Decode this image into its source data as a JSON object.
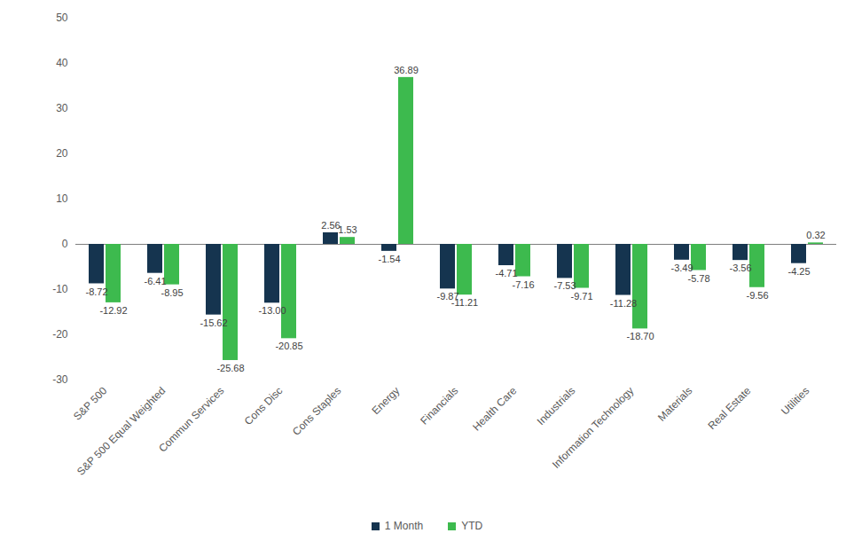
{
  "chart_data": {
    "type": "bar",
    "categories": [
      "S&P 500",
      "S&P 500 Equal Weighted",
      "Commun Services",
      "Cons Disc",
      "Cons Staples",
      "Energy",
      "Financials",
      "Health Care",
      "Industrials",
      "Information Technology",
      "Materials",
      "Real Estate",
      "Utilities"
    ],
    "series": [
      {
        "name": "1 Month",
        "color": "#15344f",
        "values": [
          -8.72,
          -6.41,
          -15.62,
          -13.0,
          2.56,
          -1.54,
          -9.87,
          -4.71,
          -7.53,
          -11.28,
          -3.49,
          -3.56,
          -4.25
        ],
        "value_labels": [
          "-8.72",
          "-6.41",
          "-15.62",
          "-13.00",
          "2.56",
          "-1.54",
          "-9.87",
          "-4.71",
          "-7.53",
          "-11.28",
          "-3.49",
          "-3.56",
          "-4.25"
        ]
      },
      {
        "name": "YTD",
        "color": "#3dba4e",
        "values": [
          -12.92,
          -8.95,
          -25.68,
          -20.85,
          1.53,
          36.89,
          -11.21,
          -7.16,
          -9.71,
          -18.7,
          -5.78,
          -9.56,
          0.32
        ],
        "value_labels": [
          "-12.92",
          "-8.95",
          "-25.68",
          "-20.85",
          "1.53",
          "36.89",
          "-11.21",
          "-7.16",
          "-9.71",
          "-18.70",
          "-5.78",
          "-9.56",
          "0.32"
        ]
      }
    ],
    "ylim": [
      -30,
      50
    ],
    "yticks": [
      -30,
      -20,
      -10,
      0,
      10,
      20,
      30,
      40,
      50
    ],
    "grid": false,
    "data_labels": true,
    "legend": "bottom"
  }
}
